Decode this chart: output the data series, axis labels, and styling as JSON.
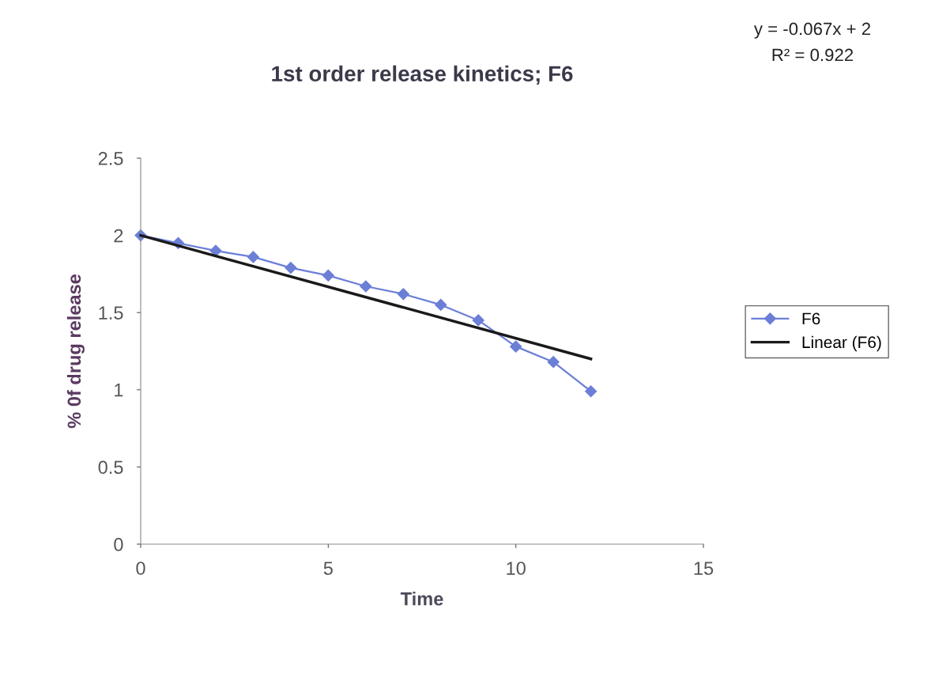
{
  "chart_data": {
    "type": "line",
    "title": "1st order release kinetics; F6",
    "xlabel": "Time",
    "ylabel": "% 0f drug release",
    "annotations": [
      "y = -0.067x + 2",
      "R² = 0.922"
    ],
    "series": [
      {
        "name": "F6",
        "color": "#6b7fd7",
        "marker": "diamond",
        "x": [
          0,
          1,
          2,
          3,
          4,
          5,
          6,
          7,
          8,
          9,
          10,
          11,
          12
        ],
        "values": [
          2.0,
          1.95,
          1.9,
          1.86,
          1.79,
          1.74,
          1.67,
          1.62,
          1.55,
          1.45,
          1.28,
          1.18,
          0.99
        ]
      },
      {
        "name": "Linear (F6)",
        "color": "#1a1a1a",
        "marker": "none",
        "x": [
          0,
          12
        ],
        "values": [
          2.0,
          1.2
        ]
      }
    ],
    "xlim": [
      0,
      15
    ],
    "xticks": [
      0,
      5,
      10,
      15
    ],
    "ylim": [
      0,
      2.5
    ],
    "yticks": [
      0,
      0.5,
      1,
      1.5,
      2,
      2.5
    ],
    "grid": false,
    "legend": "right"
  }
}
